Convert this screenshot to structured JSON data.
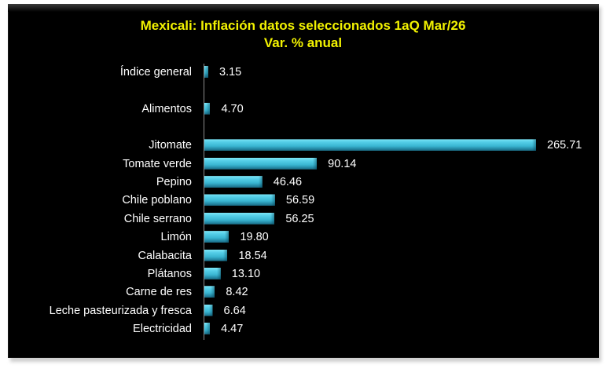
{
  "chart_data": {
    "type": "bar",
    "orientation": "horizontal",
    "title": "Mexicali: Inflación datos seleccionados 1aQ Mar/26",
    "subtitle": "Var. % anual",
    "xlabel": "",
    "ylabel": "",
    "grid": false,
    "legend": null,
    "categories": [
      "Índice general",
      "",
      "Alimentos",
      "",
      "Jitomate",
      "Tomate verde",
      "Pepino",
      "Chile poblano",
      "Chile serrano",
      "Limón",
      "Calabacita",
      "Plátanos",
      "Carne de res",
      "Leche pasteurizada y fresca",
      "Electricidad"
    ],
    "values": [
      3.15,
      null,
      4.7,
      null,
      265.71,
      90.14,
      46.46,
      56.59,
      56.25,
      19.8,
      18.54,
      13.1,
      8.42,
      6.64,
      4.47
    ],
    "value_labels": [
      "3.15",
      "",
      "4.70",
      "",
      "265.71",
      "90.14",
      "46.46",
      "56.59",
      "56.25",
      "19.80",
      "18.54",
      "13.10",
      "8.42",
      "6.64",
      "4.47"
    ],
    "xlim": [
      0,
      270
    ],
    "colors": {
      "bar": "#3ab6d2",
      "bar_highlight": "#7ee6f7",
      "bar_shadow": "#1a6a82",
      "title": "#f2f200",
      "text": "#ffffff",
      "background": "#000000",
      "axis": "#8c8c8c"
    }
  },
  "header": {
    "title": "Mexicali: Inflación datos seleccionados 1aQ Mar/26",
    "subtitle": "Var. % anual"
  }
}
